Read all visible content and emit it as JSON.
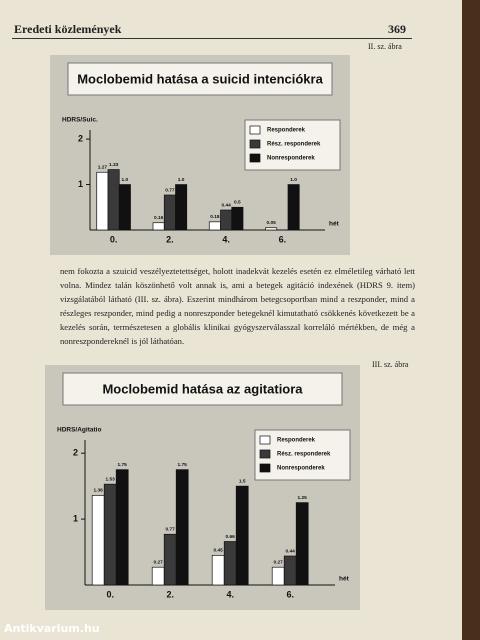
{
  "header": {
    "section": "Eredeti közlemények",
    "page_number": "369"
  },
  "figure_labels": [
    "II. sz. ábra",
    "III. sz. ábra"
  ],
  "paragraph": "nem fokozta a szuicid veszélyeztetettséget, holott inadekvát kezelés esetén ez elméletileg várható lett volna. Mindez talán köszönhető volt annak is, ami a betegek agitáció indexének (HDRS 9. item) vizsgálatából látható (III. sz. ábra). Eszerint mindhárom betegcsoportban mind a reszponder, mind a részleges reszponder, mind pedig a nonreszponder betegeknél kimutatható csökkenés következett be a kezelés során, természetesen a globális klinikai gyógyszerválasszal korreláló mértékben, de még a nonreszpondereknél is jól láthatóan.",
  "watermark": "Antikvarium.hu",
  "chart_data": [
    {
      "type": "bar",
      "title": "Moclobemid hatása a suicid intenciókra",
      "y_label": "HDRS/Suic.",
      "x_label": "hét",
      "categories": [
        "0.",
        "2.",
        "4.",
        "6."
      ],
      "series": [
        {
          "name": "Responderek",
          "color": "#ffffff",
          "values": [
            1.27,
            0.16,
            0.18,
            0.05
          ],
          "value_labels": [
            "1.27",
            "0.16",
            "0.18",
            "0.05"
          ]
        },
        {
          "name": "Rész. responderek",
          "color": "#3a3a3a",
          "values": [
            1.33,
            0.77,
            0.44,
            null
          ],
          "value_labels": [
            "1.33",
            "0.77",
            "0.44",
            null
          ]
        },
        {
          "name": "Nonresponderek",
          "color": "#111111",
          "values": [
            1.0,
            1.0,
            0.5,
            1.0
          ],
          "value_labels": [
            "1.0",
            "1.0",
            "0.5",
            "1.0"
          ]
        }
      ],
      "ylim": [
        0,
        2.2
      ],
      "yticks": [
        1,
        2
      ]
    },
    {
      "type": "bar",
      "title": "Moclobemid hatása az agitatiora",
      "y_label": "HDRS/Agitatio",
      "x_label": "hét",
      "categories": [
        "0.",
        "2.",
        "4.",
        "6."
      ],
      "series": [
        {
          "name": "Responderek",
          "color": "#ffffff",
          "values": [
            1.36,
            0.27,
            0.45,
            0.27
          ]
        },
        {
          "name": "Rész. responderek",
          "color": "#3a3a3a",
          "values": [
            1.53,
            0.77,
            0.66,
            0.44
          ]
        },
        {
          "name": "Nonresponderek",
          "color": "#111111",
          "values": [
            1.75,
            1.75,
            1.5,
            1.25
          ]
        }
      ],
      "ylim": [
        0,
        2.2
      ],
      "yticks": [
        1,
        2
      ]
    }
  ]
}
